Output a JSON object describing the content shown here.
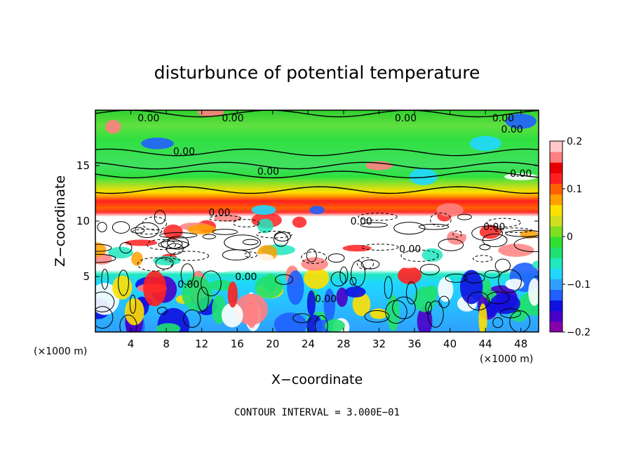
{
  "chart_data": {
    "type": "heatmap",
    "title": "disturbunce of potential temperature",
    "xlabel": "X−coordinate",
    "ylabel": "Z−coordinate",
    "x_unit": "(×1000 m)",
    "y_unit": "(×1000 m)",
    "xlim": [
      0,
      50
    ],
    "ylim": [
      0,
      20
    ],
    "x_ticks": [
      4,
      8,
      12,
      16,
      20,
      24,
      28,
      32,
      36,
      40,
      44,
      48
    ],
    "y_ticks": [
      5,
      10,
      15
    ],
    "colorbar": {
      "range": [
        -0.2,
        0.2
      ],
      "tick_values": [
        0.2,
        0.1,
        0,
        -0.1,
        -0.2
      ],
      "tick_labels": [
        "0.2",
        "0.1",
        "0",
        "−0.1",
        "−0.2"
      ],
      "colors": [
        "#8800aa",
        "#4a00c8",
        "#1010e0",
        "#2060ff",
        "#30a0ff",
        "#20d8ff",
        "#20e8c0",
        "#20e070",
        "#30e030",
        "#80e020",
        "#d0e020",
        "#ffe000",
        "#ffa000",
        "#ff6000",
        "#ff2020",
        "#e80000",
        "#ff8080",
        "#ffc8c8"
      ]
    },
    "contour_label": "0.00",
    "contour_interval_text": "CONTOUR INTERVAL = 3.000E−01",
    "layers": [
      {
        "z_range": [
          16,
          20
        ],
        "value": 0.0
      },
      {
        "z_range": [
          12.5,
          16
        ],
        "value": 0.0
      },
      {
        "z_range": [
          10.5,
          12.5
        ],
        "value": 0.12
      },
      {
        "z_range": [
          5.5,
          10.5
        ],
        "value": 0.3
      },
      {
        "z_range": [
          0,
          5.5
        ],
        "value": -0.05
      }
    ]
  }
}
